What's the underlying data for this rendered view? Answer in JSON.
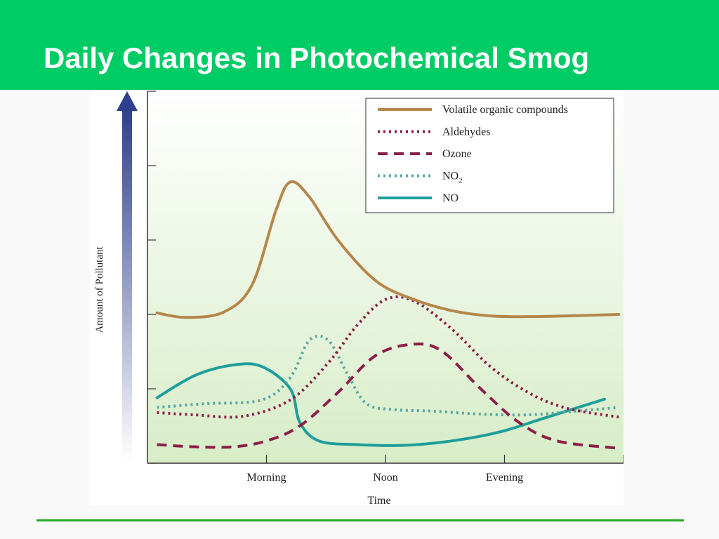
{
  "slide": {
    "title": "Daily Changes in Photochemical Smog"
  },
  "colors": {
    "title_bar": "#00cc66",
    "footer_rule": "#22aa22"
  },
  "chart_data": {
    "type": "line",
    "xlabel": "Time",
    "ylabel": "Amount of Pollutant",
    "x_ticks": [
      {
        "x": 0.25,
        "label": "Morning"
      },
      {
        "x": 0.5,
        "label": "Noon"
      },
      {
        "x": 0.75,
        "label": "Evening"
      },
      {
        "x": 1.0,
        "label": ""
      }
    ],
    "xlim": [
      0,
      1
    ],
    "ylim": [
      0,
      5
    ],
    "legend_position": "top-right",
    "series": [
      {
        "name": "Volatile organic compounds",
        "color": "#b5874a",
        "style": "solid",
        "points": [
          [
            0.02,
            2.02
          ],
          [
            0.08,
            1.96
          ],
          [
            0.16,
            2.03
          ],
          [
            0.22,
            2.4
          ],
          [
            0.27,
            3.4
          ],
          [
            0.3,
            3.78
          ],
          [
            0.34,
            3.58
          ],
          [
            0.4,
            3.0
          ],
          [
            0.48,
            2.45
          ],
          [
            0.56,
            2.2
          ],
          [
            0.64,
            2.05
          ],
          [
            0.72,
            1.98
          ],
          [
            0.8,
            1.97
          ],
          [
            0.88,
            1.98
          ],
          [
            0.99,
            2.0
          ]
        ]
      },
      {
        "name": "Aldehydes",
        "color": "#8b1e4a",
        "style": "dotted",
        "points": [
          [
            0.02,
            0.68
          ],
          [
            0.1,
            0.65
          ],
          [
            0.2,
            0.63
          ],
          [
            0.3,
            0.85
          ],
          [
            0.38,
            1.35
          ],
          [
            0.44,
            1.85
          ],
          [
            0.5,
            2.2
          ],
          [
            0.56,
            2.18
          ],
          [
            0.64,
            1.8
          ],
          [
            0.72,
            1.3
          ],
          [
            0.8,
            0.95
          ],
          [
            0.88,
            0.74
          ],
          [
            0.99,
            0.62
          ]
        ]
      },
      {
        "name": "Ozone",
        "color": "#8b1e4a",
        "style": "dashed",
        "points": [
          [
            0.02,
            0.25
          ],
          [
            0.1,
            0.22
          ],
          [
            0.18,
            0.22
          ],
          [
            0.25,
            0.3
          ],
          [
            0.32,
            0.5
          ],
          [
            0.4,
            0.95
          ],
          [
            0.48,
            1.45
          ],
          [
            0.56,
            1.6
          ],
          [
            0.62,
            1.5
          ],
          [
            0.7,
            1.0
          ],
          [
            0.78,
            0.55
          ],
          [
            0.86,
            0.3
          ],
          [
            0.99,
            0.2
          ]
        ]
      },
      {
        "name": "NO2",
        "color": "#5aa7a3",
        "style": "dotted",
        "points": [
          [
            0.02,
            0.75
          ],
          [
            0.12,
            0.8
          ],
          [
            0.24,
            0.85
          ],
          [
            0.3,
            1.15
          ],
          [
            0.34,
            1.65
          ],
          [
            0.38,
            1.65
          ],
          [
            0.42,
            1.2
          ],
          [
            0.46,
            0.8
          ],
          [
            0.52,
            0.72
          ],
          [
            0.6,
            0.7
          ],
          [
            0.7,
            0.66
          ],
          [
            0.8,
            0.65
          ],
          [
            0.9,
            0.7
          ],
          [
            0.99,
            0.75
          ]
        ]
      },
      {
        "name": "NO",
        "color": "#1e9e9a",
        "style": "solid",
        "points": [
          [
            0.02,
            0.88
          ],
          [
            0.1,
            1.18
          ],
          [
            0.18,
            1.32
          ],
          [
            0.24,
            1.3
          ],
          [
            0.3,
            1.0
          ],
          [
            0.32,
            0.55
          ],
          [
            0.36,
            0.3
          ],
          [
            0.44,
            0.25
          ],
          [
            0.54,
            0.24
          ],
          [
            0.64,
            0.3
          ],
          [
            0.74,
            0.42
          ],
          [
            0.84,
            0.62
          ],
          [
            0.96,
            0.86
          ]
        ]
      }
    ]
  }
}
